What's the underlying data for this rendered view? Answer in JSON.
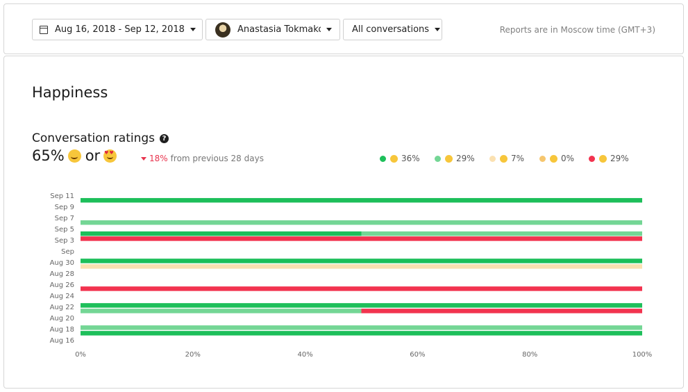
{
  "filters": {
    "date_range": "Aug 16, 2018 - Sep 12, 2018",
    "agent": "Anastasia Tokmakov",
    "conversations": "All conversations",
    "timezone_note": "Reports are in Moscow time (GMT+3)"
  },
  "report": {
    "title": "Happiness",
    "subtitle": "Conversation ratings",
    "headline_pct": "65%",
    "headline_or": "or",
    "change_pct": "18%",
    "change_text": "from previous 28 days"
  },
  "legend": [
    {
      "icon": "heart-eyes-emoji-icon",
      "color": "#1dbf5a",
      "label": "36%"
    },
    {
      "icon": "smile-emoji-icon",
      "color": "#74d695",
      "label": "29%"
    },
    {
      "icon": "neutral-emoji-icon",
      "color": "#fbe1b1",
      "label": "7%"
    },
    {
      "icon": "confused-emoji-icon",
      "color": "#f6c66e",
      "label": "0%"
    },
    {
      "icon": "angry-emoji-icon",
      "color": "#f2334f",
      "label": "29%"
    }
  ],
  "chart_data": {
    "type": "bar",
    "orientation": "horizontal",
    "stacked": true,
    "categories": [
      "Sep 11",
      "Sep 9",
      "Sep 7",
      "Sep 5",
      "Sep 3",
      "Sep",
      "Aug 30",
      "Aug 28",
      "Aug 26",
      "Aug 24",
      "Aug 22",
      "Aug 20",
      "Aug 18",
      "Aug 16"
    ],
    "x_ticks": [
      "0%",
      "20%",
      "40%",
      "60%",
      "80%",
      "100%"
    ],
    "xlim": [
      0,
      100
    ],
    "grid": false,
    "legend_position": "top-right",
    "bars": [
      {
        "label": "Sep 11",
        "segments": [
          {
            "color": "#1dbf5a",
            "value": 100
          }
        ]
      },
      {
        "label": "Sep 7",
        "segments": [
          {
            "color": "#74d695",
            "value": 100
          }
        ]
      },
      {
        "label": "Sep 5",
        "segments": [
          {
            "color": "#1dbf5a",
            "value": 50
          },
          {
            "color": "#74d695",
            "value": 50
          }
        ]
      },
      {
        "label": "Sep 3",
        "segments": [
          {
            "color": "#f2334f",
            "value": 100
          }
        ]
      },
      {
        "label": "Aug 30",
        "segments": [
          {
            "color": "#1dbf5a",
            "value": 100
          }
        ]
      },
      {
        "label": "Aug 30",
        "segments": [
          {
            "color": "#fbe1b1",
            "value": 100
          }
        ]
      },
      {
        "label": "Aug 26",
        "segments": [
          {
            "color": "#f2334f",
            "value": 100
          }
        ]
      },
      {
        "label": "Aug 22",
        "segments": [
          {
            "color": "#1dbf5a",
            "value": 100
          }
        ]
      },
      {
        "label": "Aug 20",
        "segments": [
          {
            "color": "#74d695",
            "value": 50
          },
          {
            "color": "#f2334f",
            "value": 50
          }
        ]
      },
      {
        "label": "Aug 18",
        "segments": [
          {
            "color": "#74d695",
            "value": 100
          }
        ]
      },
      {
        "label": "Aug 16",
        "segments": [
          {
            "color": "#1dbf5a",
            "value": 100
          }
        ]
      }
    ]
  }
}
